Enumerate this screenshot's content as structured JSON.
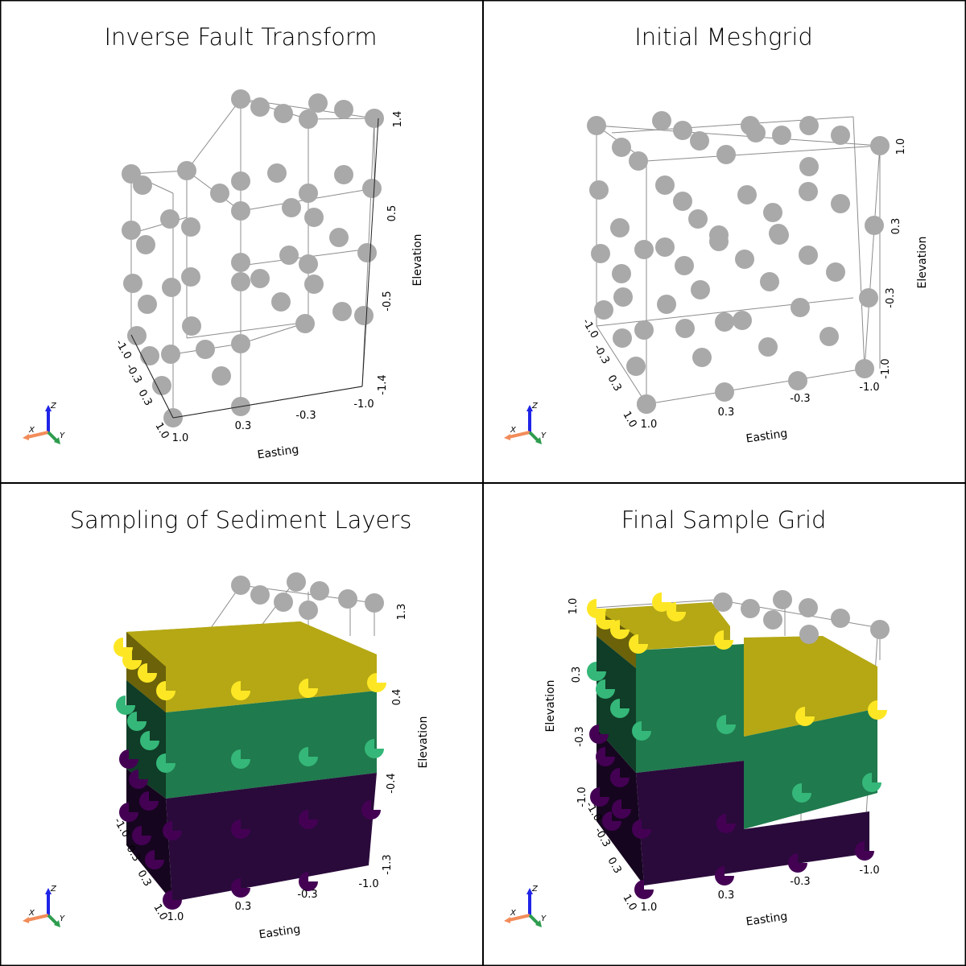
{
  "colors": {
    "node": "#a9a9a9",
    "yellow_block": "#b5a814",
    "green_block": "#1f7a4d",
    "purple_block": "#2a0a3b",
    "yellow_node": "#fde725",
    "green_node": "#35b779",
    "purple_node": "#440154",
    "axis_x": "#f28c5a",
    "axis_y": "#2e9c4e",
    "axis_z": "#1f24e6",
    "divider": "#000000"
  },
  "panels": [
    {
      "title": "Inverse Fault Transform",
      "xlabel": "Easting",
      "zlabel": "Elevation",
      "x_ticks": [
        "1.0",
        "0.3",
        "-0.3",
        "-1.0"
      ],
      "z_ticks": [
        "1.4",
        "0.5",
        "-0.5",
        "-1.4"
      ],
      "y_ticks": [
        "-1.0",
        "-0.3",
        "0.3",
        "1.0"
      ],
      "triad": {
        "x": "X",
        "y": "Y",
        "z": "Z"
      }
    },
    {
      "title": "Initial Meshgrid",
      "xlabel": "Easting",
      "zlabel": "Elevation",
      "x_ticks": [
        "1.0",
        "0.3",
        "-0.3",
        "-1.0"
      ],
      "z_ticks": [
        "1.0",
        "0.3",
        "-0.3",
        "-1.0"
      ],
      "y_ticks": [
        "-1.0",
        "-0.3",
        "0.3",
        "1.0"
      ],
      "triad": {
        "x": "X",
        "y": "Y",
        "z": "Z"
      }
    },
    {
      "title": "Sampling of Sediment Layers",
      "xlabel": "Easting",
      "zlabel": "Elevation",
      "x_ticks": [
        "1.0",
        "0.3",
        "-0.3",
        "-1.0"
      ],
      "z_ticks": [
        "1.3",
        "0.4",
        "-0.4",
        "-1.3"
      ],
      "y_ticks": [
        "-1.0",
        "-0.3",
        "0.3",
        "1.0"
      ],
      "triad": {
        "x": "X",
        "y": "Y",
        "z": "Z"
      }
    },
    {
      "title": "Final Sample Grid",
      "xlabel": "Easting",
      "zlabel": "Elevation",
      "x_ticks": [
        "1.0",
        "0.3",
        "-0.3",
        "-1.0"
      ],
      "z_ticks": [
        "1.0",
        "0.3",
        "-0.3",
        "-1.0"
      ],
      "y_ticks": [
        "-1.0",
        "-0.3",
        "0.3",
        "1.0"
      ],
      "triad": {
        "x": "X",
        "y": "Y",
        "z": "Z"
      }
    }
  ]
}
